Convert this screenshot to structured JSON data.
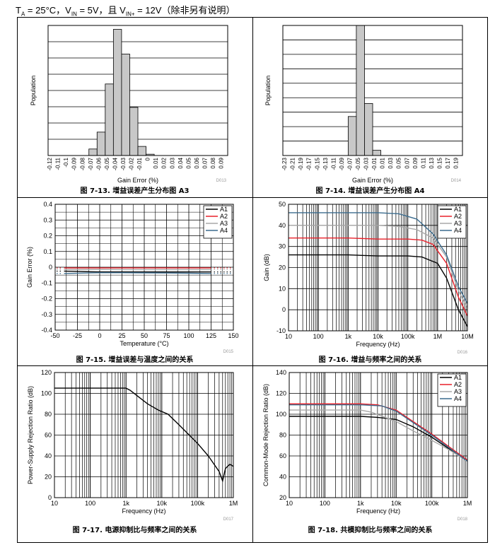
{
  "header": {
    "ta": "T",
    "ta_sub": "A",
    "ta_val": " = 25°C，V",
    "vin_sub": "IN",
    "vin_val": " = 5V，且 V",
    "vinp_sub": "IN+",
    "vinp_val": " = 12V（除非另有说明）"
  },
  "chart_data": [
    {
      "type": "bar",
      "caption": "图 7-13. 增益误差产生分布图 A3",
      "xlabel": "Gain Error (%)",
      "ylabel": "Population",
      "code": "D013",
      "categories": [
        "-0.12",
        "-0.11",
        "-0.1",
        "-0.09",
        "-0.08",
        "-0.07",
        "-0.06",
        "-0.05",
        "-0.04",
        "-0.03",
        "-0.02",
        "-0.01",
        "0",
        "0.01",
        "0.02",
        "0.03",
        "0.04",
        "0.05",
        "0.06",
        "0.07",
        "0.08",
        "0.09"
      ],
      "values": [
        0,
        0,
        0,
        0,
        0,
        0.05,
        0.18,
        0.55,
        0.97,
        0.78,
        0.37,
        0.07,
        0.01,
        0,
        0,
        0,
        0,
        0,
        0,
        0,
        0,
        0
      ],
      "ylim": [
        0,
        1.0
      ],
      "ygrid": 8
    },
    {
      "type": "bar",
      "caption": "图 7-14. 增益误差产生分布图 A4",
      "xlabel": "Gain Error (%)",
      "ylabel": "Population",
      "code": "D014",
      "categories": [
        "-0.23",
        "-0.21",
        "-0.19",
        "-0.17",
        "-0.15",
        "-0.13",
        "-0.11",
        "-0.09",
        "-0.07",
        "-0.05",
        "-0.03",
        "-0.01",
        "0.01",
        "0.03",
        "0.05",
        "0.07",
        "0.09",
        "0.11",
        "0.13",
        "0.15",
        "0.17",
        "0.19"
      ],
      "values": [
        0,
        0,
        0,
        0,
        0,
        0,
        0,
        0,
        0.3,
        1.0,
        0.4,
        0.04,
        0,
        0,
        0,
        0,
        0,
        0,
        0,
        0,
        0,
        0
      ],
      "ylim": [
        0,
        1.0
      ],
      "ygrid": 9
    },
    {
      "type": "line",
      "caption": "图 7-15. 增益误差与温度之间的关系",
      "xlabel": "Temperature (°C)",
      "ylabel": "Gain Error (%)",
      "code": "D015",
      "xlim": [
        -50,
        150
      ],
      "xticks": [
        -50,
        -25,
        0,
        25,
        50,
        75,
        100,
        125,
        150
      ],
      "xtick_labels": [
        "-50",
        "-25",
        "0",
        "25",
        "50",
        "75",
        "100",
        "125",
        "150"
      ],
      "ylim": [
        -0.4,
        0.4
      ],
      "yticks": [
        -0.4,
        -0.3,
        -0.2,
        -0.1,
        0,
        0.1,
        0.2,
        0.3,
        0.4
      ],
      "ytick_labels": [
        "-0.4",
        "-0.3",
        "-0.2",
        "-0.1",
        "0",
        "0.1",
        "0.2",
        "0.3",
        "0.4"
      ],
      "legend": "top-right",
      "series": [
        {
          "name": "A1",
          "color": "#000000",
          "x": [
            -40,
            0,
            25,
            50,
            75,
            100,
            125
          ],
          "y": [
            -0.025,
            -0.03,
            -0.03,
            -0.03,
            -0.03,
            -0.03,
            -0.03
          ]
        },
        {
          "name": "A2",
          "color": "#e8202a",
          "x": [
            -40,
            0,
            25,
            50,
            75,
            100,
            125
          ],
          "y": [
            -0.005,
            -0.005,
            -0.005,
            -0.005,
            -0.005,
            -0.005,
            -0.005
          ]
        },
        {
          "name": "A3",
          "color": "#a8a8a8",
          "x": [
            -40,
            0,
            25,
            50,
            75,
            100,
            125
          ],
          "y": [
            -0.015,
            -0.015,
            -0.016,
            -0.016,
            -0.016,
            -0.016,
            -0.016
          ]
        },
        {
          "name": "A4",
          "color": "#3b6c8e",
          "x": [
            -40,
            0,
            25,
            50,
            75,
            100,
            125
          ],
          "y": [
            -0.04,
            -0.035,
            -0.035,
            -0.036,
            -0.037,
            -0.038,
            -0.04
          ]
        }
      ]
    },
    {
      "type": "line",
      "caption": "图 7-16. 增益与频率之间的关系",
      "xlabel": "Frequency (Hz)",
      "ylabel": "Gain (dB)",
      "code": "D016",
      "xlog": true,
      "xlim": [
        10,
        10000000
      ],
      "xticks": [
        10,
        100,
        1000,
        10000,
        100000,
        1000000,
        10000000
      ],
      "xtick_labels": [
        "10",
        "100",
        "1k",
        "10k",
        "100k",
        "1M",
        "10M"
      ],
      "ylim": [
        -10,
        50
      ],
      "yticks": [
        -10,
        0,
        10,
        20,
        30,
        40,
        50
      ],
      "ytick_labels": [
        "-10",
        "0",
        "10",
        "20",
        "30",
        "40",
        "50"
      ],
      "legend": "top-right",
      "series": [
        {
          "name": "A1",
          "color": "#000000",
          "x": [
            10,
            1000,
            10000,
            100000,
            300000,
            1000000,
            2000000,
            5000000,
            10000000
          ],
          "y": [
            26,
            26,
            25.5,
            25.5,
            25,
            22,
            15,
            0,
            -8
          ]
        },
        {
          "name": "A2",
          "color": "#e8202a",
          "x": [
            10,
            1000,
            10000,
            100000,
            300000,
            700000,
            2000000,
            5000000,
            10000000
          ],
          "y": [
            34,
            34,
            33.5,
            33.5,
            33,
            31,
            22,
            6,
            -3
          ]
        },
        {
          "name": "A3",
          "color": "#a8a8a8",
          "x": [
            10,
            1000,
            10000,
            50000,
            200000,
            700000,
            2000000,
            5000000,
            10000000
          ],
          "y": [
            40,
            40,
            40,
            39.5,
            38,
            34,
            25,
            9,
            1
          ]
        },
        {
          "name": "A4",
          "color": "#3b6c8e",
          "x": [
            10,
            1000,
            10000,
            50000,
            200000,
            700000,
            2000000,
            5000000,
            10000000
          ],
          "y": [
            46,
            46,
            46,
            45.5,
            43,
            36,
            26,
            11,
            3
          ]
        }
      ]
    },
    {
      "type": "line",
      "caption": "图 7-17. 电源抑制比与频率之间的关系",
      "xlabel": "Frequency (Hz)",
      "ylabel": "Power-Supply Rejection Ratio (dB)",
      "code": "D017",
      "xlog": true,
      "xlim": [
        10,
        1000000
      ],
      "xticks": [
        10,
        100,
        1000,
        10000,
        100000,
        1000000
      ],
      "xtick_labels": [
        "10",
        "100",
        "1k",
        "10k",
        "100k",
        "1M"
      ],
      "ylim": [
        0,
        120
      ],
      "yticks": [
        0,
        20,
        40,
        60,
        80,
        100,
        120
      ],
      "ytick_labels": [
        "0",
        "20",
        "40",
        "60",
        "80",
        "100",
        "120"
      ],
      "series": [
        {
          "name": "",
          "color": "#000000",
          "x": [
            10,
            100,
            1000,
            1300,
            2000,
            4000,
            8000,
            15000,
            30000,
            100000,
            200000,
            400000,
            500000,
            600000,
            800000,
            1000000
          ],
          "y": [
            105,
            105,
            105,
            103,
            98,
            90,
            84,
            80,
            70,
            52,
            40,
            25,
            16,
            28,
            32,
            30
          ]
        }
      ]
    },
    {
      "type": "line",
      "caption": "图 7-18. 共模抑制比与频率之间的关系",
      "xlabel": "Frequency (Hz)",
      "ylabel": "Common-Mode Rejection Ratio (dB)",
      "code": "D018",
      "xlog": true,
      "xlim": [
        10,
        1000000
      ],
      "xticks": [
        10,
        100,
        1000,
        10000,
        100000,
        1000000
      ],
      "xtick_labels": [
        "10",
        "100",
        "1k",
        "10k",
        "100k",
        "1M"
      ],
      "ylim": [
        20,
        140
      ],
      "yticks": [
        20,
        40,
        60,
        80,
        100,
        120,
        140
      ],
      "ytick_labels": [
        "20",
        "40",
        "60",
        "80",
        "100",
        "120",
        "140"
      ],
      "legend": "top-right",
      "series": [
        {
          "name": "A1",
          "color": "#000000",
          "x": [
            10,
            1000,
            3000,
            10000,
            30000,
            100000,
            300000,
            1000000
          ],
          "y": [
            98,
            98,
            97,
            95,
            88,
            78,
            67,
            56
          ]
        },
        {
          "name": "A2",
          "color": "#e8202a",
          "x": [
            10,
            1000,
            3000,
            10000,
            30000,
            100000,
            300000,
            1000000
          ],
          "y": [
            110,
            110,
            109,
            104,
            93,
            81,
            69,
            56
          ]
        },
        {
          "name": "A3",
          "color": "#a8a8a8",
          "x": [
            10,
            1000,
            2000,
            10000,
            30000,
            100000,
            300000,
            1000000
          ],
          "y": [
            104,
            104,
            102,
            93,
            84,
            75,
            66,
            55
          ]
        },
        {
          "name": "A4",
          "color": "#3b6c8e",
          "x": [
            10,
            1000,
            4000,
            10000,
            30000,
            100000,
            300000,
            1000000
          ],
          "y": [
            109,
            109,
            108,
            103,
            92,
            80,
            68,
            55
          ]
        }
      ]
    }
  ]
}
